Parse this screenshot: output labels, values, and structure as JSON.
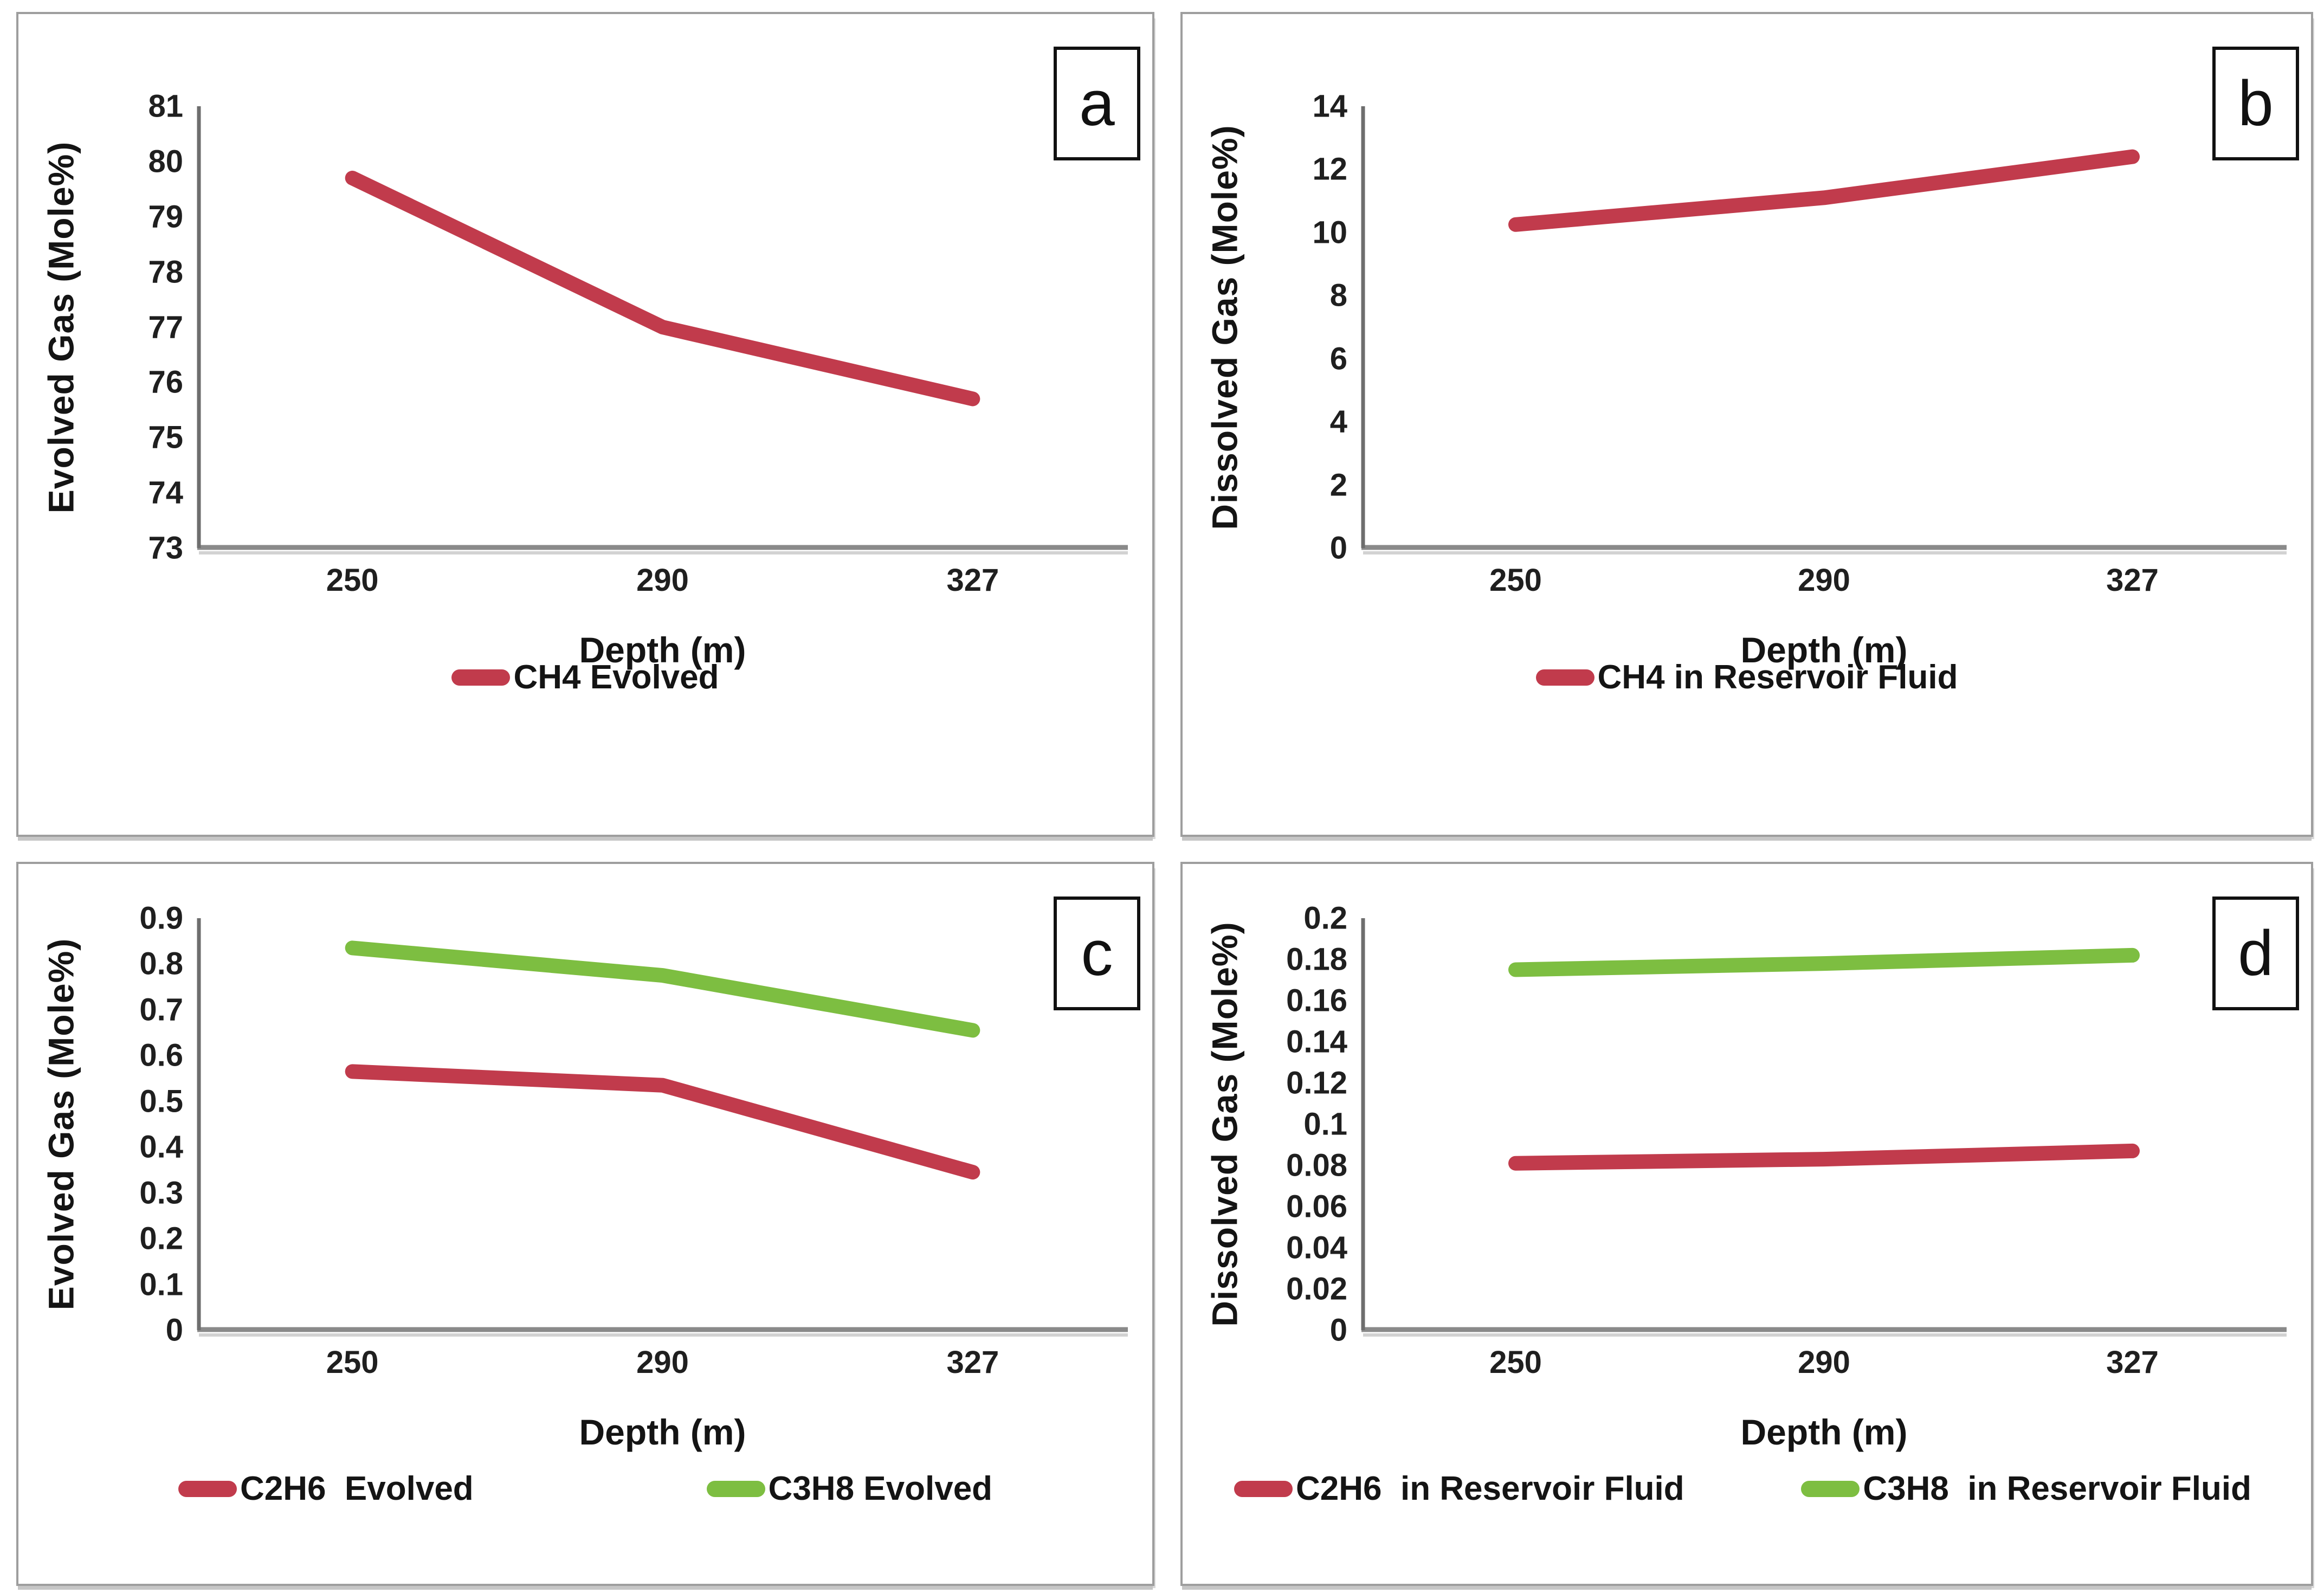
{
  "colors": {
    "red": "#C13B4C",
    "green": "#7DBE41",
    "y_axis_line": "#6e6e6e",
    "x_axis_line": "#8a8a8a",
    "x_axis_shadow": "#d2d2d2",
    "panel_border": "#9e9e9e",
    "text": "#141414"
  },
  "chart_data": [
    {
      "type": "line",
      "panel_label": "a",
      "title": "",
      "xlabel": "Depth (m)",
      "ylabel": "Evolved Gas (Mole%)",
      "categories": [
        "250",
        "290",
        "327"
      ],
      "x": [
        250,
        290,
        327
      ],
      "ylim": [
        73,
        81
      ],
      "ystep": 1,
      "yticks": [
        "81",
        "80",
        "79",
        "78",
        "77",
        "76",
        "75",
        "74",
        "73"
      ],
      "grid": false,
      "legend_position": "bottom",
      "series": [
        {
          "name": "CH4 Evolved",
          "color_key": "red",
          "values": [
            79.7,
            77.0,
            75.7
          ]
        }
      ]
    },
    {
      "type": "line",
      "panel_label": "b",
      "title": "",
      "xlabel": "Depth (m)",
      "ylabel": "Dissolved Gas (Mole%)",
      "categories": [
        "250",
        "290",
        "327"
      ],
      "x": [
        250,
        290,
        327
      ],
      "ylim": [
        0,
        14
      ],
      "ystep": 2,
      "yticks": [
        "14",
        "12",
        "10",
        "8",
        "6",
        "4",
        "2",
        "0"
      ],
      "grid": false,
      "legend_position": "bottom",
      "series": [
        {
          "name": "CH4 in Reservoir Fluid",
          "color_key": "red",
          "values": [
            10.25,
            11.1,
            12.4
          ]
        }
      ]
    },
    {
      "type": "line",
      "panel_label": "c",
      "title": "",
      "xlabel": "Depth (m)",
      "ylabel": "Evolved Gas (Mole%)",
      "categories": [
        "250",
        "290",
        "327"
      ],
      "x": [
        250,
        290,
        327
      ],
      "ylim": [
        0,
        0.9
      ],
      "ystep": 0.1,
      "yticks": [
        "0.9",
        "0.8",
        "0.7",
        "0.6",
        "0.5",
        "0.4",
        "0.3",
        "0.2",
        "0.1",
        "0"
      ],
      "grid": false,
      "legend_position": "bottom",
      "series": [
        {
          "name": "C2H6  Evolved",
          "color_key": "red",
          "values": [
            0.565,
            0.535,
            0.345
          ]
        },
        {
          "name": "C3H8 Evolved",
          "color_key": "green",
          "values": [
            0.835,
            0.775,
            0.655
          ]
        }
      ]
    },
    {
      "type": "line",
      "panel_label": "d",
      "title": "",
      "xlabel": "Depth (m)",
      "ylabel": "Dissolved Gas (Mole%)",
      "categories": [
        "250",
        "290",
        "327"
      ],
      "x": [
        250,
        290,
        327
      ],
      "ylim": [
        0,
        0.2
      ],
      "ystep": 0.02,
      "yticks": [
        "0.2",
        "0.18",
        "0.16",
        "0.14",
        "0.12",
        "0.1",
        "0.08",
        "0.06",
        "0.04",
        "0.02",
        "0"
      ],
      "grid": false,
      "legend_position": "bottom",
      "series": [
        {
          "name": "C2H6  in Reservoir Fluid",
          "color_key": "red",
          "values": [
            0.081,
            0.083,
            0.087
          ]
        },
        {
          "name": "C3H8  in Reservoir Fluid",
          "color_key": "green",
          "values": [
            0.175,
            0.178,
            0.182
          ]
        }
      ]
    }
  ]
}
